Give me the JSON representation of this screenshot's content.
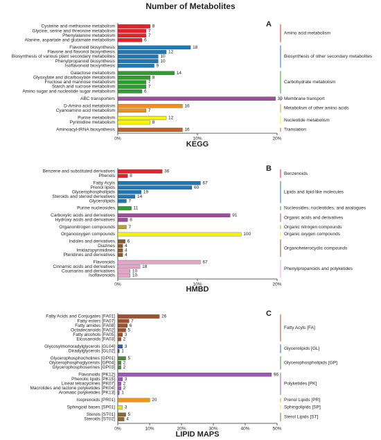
{
  "title": "Number of Metabolites",
  "chart_data": [
    {
      "type": "bar",
      "title": "A",
      "xlabel": "KEGG",
      "xlim": [
        0,
        39.4
      ],
      "xticks": [
        {
          "value": 0,
          "label": "0%"
        },
        {
          "value": 19.7,
          "label": "10%"
        },
        {
          "value": 39.4,
          "label": "20%"
        }
      ],
      "groups": [
        {
          "name": "Amino acid metabolism",
          "color": "#e8202a",
          "categories": [
            "Cysteine and methionine metabolism",
            "Glycine, serine and threonine metabolism",
            "Phenylalanine metabolism",
            "Alanine, aspartate and glutamate metabolism"
          ],
          "values": [
            8,
            7,
            7,
            6
          ]
        },
        {
          "name": "Biosynthesis of other secondary metabolites",
          "color": "#1f77b4",
          "categories": [
            "Flavonoid biosynthesis",
            "Flavone and flavonol biosynthesis",
            "Biosynthesis of various plant secondary metabolites",
            "Phenylpropanoid biosynthesis",
            "Isoflavonoid biosynthesis"
          ],
          "values": [
            18,
            12,
            10,
            10,
            9
          ]
        },
        {
          "name": "Carbohydrate metabolism",
          "color": "#2ca02c",
          "categories": [
            "Galactose metabolism",
            "Glyoxylate and dicarboxylate metabolism",
            "Fructose and mannose metabolism",
            "Starch and sucrose metabolism",
            "Amino sugar and nucleotide sugar metabolism"
          ],
          "values": [
            14,
            8,
            7,
            7,
            6
          ]
        },
        {
          "name": "Membrane transport",
          "color": "#9b4f9b",
          "categories": [
            "ABC transporters"
          ],
          "values": [
            39
          ]
        },
        {
          "name": "Metabolism of other amino acids",
          "color": "#f28e1c",
          "categories": [
            "D-Amino acid metabolism",
            "Cyanoamino acid metabolism"
          ],
          "values": [
            16,
            7
          ]
        },
        {
          "name": "Nucleotide metabolism",
          "color": "#f5f500",
          "categories": [
            "Purine metabolism",
            "Pyrimidine metabolism"
          ],
          "values": [
            12,
            8
          ]
        },
        {
          "name": "Translation",
          "color": "#c0622a",
          "categories": [
            "Aminoacyl-tRNA biosynthesis"
          ],
          "values": [
            16
          ]
        }
      ]
    },
    {
      "type": "bar",
      "title": "B",
      "xlabel": "HMBD",
      "xlim": [
        0,
        129
      ],
      "xticks": [
        {
          "value": 0,
          "label": "0%"
        },
        {
          "value": 64.5,
          "label": "10%"
        },
        {
          "value": 129,
          "label": "20%"
        }
      ],
      "groups": [
        {
          "name": "Benzenoids",
          "color": "#e8202a",
          "categories": [
            "Benzene and substituted derivatives",
            "Phenols"
          ],
          "values": [
            36,
            8
          ]
        },
        {
          "name": "Lipids and lipid-like molecules",
          "color": "#1f77b4",
          "categories": [
            "Fatty Acyls",
            "Prenol lipids",
            "Glycerophospholipids",
            "Steroids and steroid derivatives",
            "Glycerolipids"
          ],
          "values": [
            67,
            60,
            19,
            14,
            7
          ]
        },
        {
          "name": "Nucleosides, nucleotides, and analogues",
          "color": "#2ca02c",
          "categories": [
            "Purine nucleosides"
          ],
          "values": [
            11
          ]
        },
        {
          "name": "Organic acids and derivatives",
          "color": "#9b4f9b",
          "categories": [
            "Carboxylic acids and derivatives",
            "Hydroxy acids and derivatives"
          ],
          "values": [
            91,
            8
          ]
        },
        {
          "name": "Organic nitrogen compounds",
          "color": "#b5a22a",
          "categories": [
            "Organonitrogen compounds"
          ],
          "values": [
            7
          ]
        },
        {
          "name": "Organic oxygen compounds",
          "color": "#f5f500",
          "categories": [
            "Organooxygen compounds"
          ],
          "values": [
            100
          ]
        },
        {
          "name": "Organoheterocyclic compounds",
          "color": "#8b5a2b",
          "categories": [
            "Indoles and derivatives",
            "Diazines",
            "Imidazopyrimidines",
            "Pteridines and derivatives"
          ],
          "values": [
            6,
            4,
            4,
            4
          ]
        },
        {
          "name": "Phenylpropanoids and polyketides",
          "color": "#e9a3c9",
          "categories": [
            "Flavonoids",
            "Cinnamic acids and derivatives",
            "Coumarins and derivatives",
            "Isoflavonoids"
          ],
          "values": [
            67,
            18,
            10,
            10
          ]
        }
      ]
    },
    {
      "type": "bar",
      "title": "C",
      "xlabel": "LIPID MAPS",
      "xlim": [
        0,
        99.5
      ],
      "xticks": [
        {
          "value": 0,
          "label": "0%"
        },
        {
          "value": 19.9,
          "label": "10%"
        },
        {
          "value": 39.8,
          "label": "20%"
        },
        {
          "value": 59.7,
          "label": "30%"
        },
        {
          "value": 79.6,
          "label": "40%"
        },
        {
          "value": 99.5,
          "label": "50%"
        }
      ],
      "groups": [
        {
          "name": "Fatty Acyls [FA]",
          "color": "#a0522d",
          "categories": [
            "Fatty Acids and Conjugates [FA01]",
            "Fatty esters [FA07]",
            "Fatty amides [FA08]",
            "Octadecanoids [FA02]",
            "Fatty alcohols [FA05]",
            "Eicosanoids [FA03]"
          ],
          "values": [
            26,
            7,
            6,
            5,
            3,
            2
          ]
        },
        {
          "name": "Glycerolipids [GL]",
          "color": "#3b5ba5",
          "categories": [
            "Glycosylmonoradylglycerols [GL04]",
            "Diradylglycerols [GL02]"
          ],
          "values": [
            3,
            1
          ]
        },
        {
          "name": "Glycerophospholipids [GP]",
          "color": "#4f8a3a",
          "categories": [
            "Glycerophosphocholines [GP01]",
            "Glycerophosphoglycerols [GP04]",
            "Glycerophosphoserines [GP03]"
          ],
          "values": [
            5,
            2,
            2
          ]
        },
        {
          "name": "Polyketides [PK]",
          "color": "#9b59b6",
          "categories": [
            "Flavonoids [PK12]",
            "Phenolic lipids [PK15]",
            "Linear tetracyclines [PK07]",
            "Macrolides and lactone polyketides [PK04]",
            "Aromatic polyketides [PK13]"
          ],
          "values": [
            96,
            3,
            2,
            2,
            1
          ]
        },
        {
          "name": "Prenol Lipids [PR]",
          "color": "#f0961e",
          "categories": [
            "Isoprenoids [PR01]"
          ],
          "values": [
            20
          ]
        },
        {
          "name": "Sphingolipids [SP]",
          "color": "#e8e030",
          "categories": [
            "Sphingoid bases [SP01]"
          ],
          "values": [
            3
          ]
        },
        {
          "name": "Sterol Lipids [ST]",
          "color": "#8b6a2b",
          "categories": [
            "Sterols [ST01]",
            "Steroids [ST02]"
          ],
          "values": [
            5,
            4
          ]
        }
      ]
    }
  ]
}
